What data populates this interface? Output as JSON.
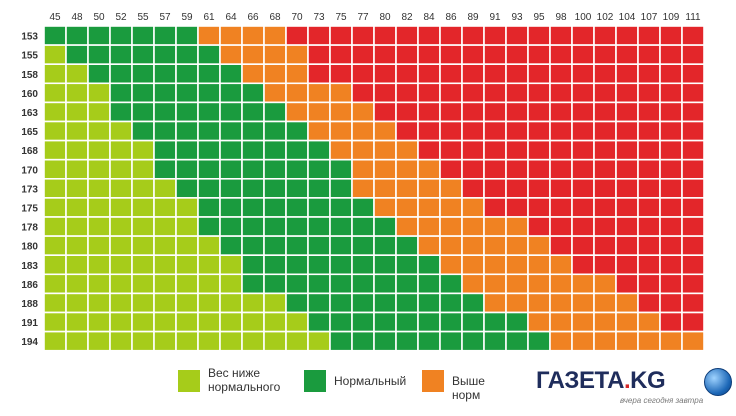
{
  "chart_data": {
    "type": "heatmap",
    "title": "",
    "xlabel": "",
    "ylabel": "",
    "x_categories": [
      "45",
      "48",
      "50",
      "52",
      "55",
      "57",
      "59",
      "61",
      "64",
      "66",
      "68",
      "70",
      "73",
      "75",
      "77",
      "80",
      "82",
      "84",
      "86",
      "89",
      "91",
      "93",
      "95",
      "98",
      "100",
      "102",
      "104",
      "107",
      "109",
      "111"
    ],
    "y_categories": [
      "153",
      "155",
      "158",
      "160",
      "163",
      "165",
      "168",
      "170",
      "173",
      "175",
      "178",
      "180",
      "183",
      "186",
      "188",
      "191",
      "194"
    ],
    "class_by_cell": [
      [
        1,
        1,
        1,
        1,
        1,
        1,
        1,
        2,
        2,
        2,
        2,
        3,
        3,
        3,
        3,
        3,
        3,
        3,
        3,
        3,
        3,
        3,
        3,
        3,
        3,
        3,
        3,
        3,
        3,
        3
      ],
      [
        0,
        1,
        1,
        1,
        1,
        1,
        1,
        1,
        2,
        2,
        2,
        2,
        3,
        3,
        3,
        3,
        3,
        3,
        3,
        3,
        3,
        3,
        3,
        3,
        3,
        3,
        3,
        3,
        3,
        3
      ],
      [
        0,
        0,
        1,
        1,
        1,
        1,
        1,
        1,
        1,
        2,
        2,
        2,
        3,
        3,
        3,
        3,
        3,
        3,
        3,
        3,
        3,
        3,
        3,
        3,
        3,
        3,
        3,
        3,
        3,
        3
      ],
      [
        0,
        0,
        0,
        1,
        1,
        1,
        1,
        1,
        1,
        1,
        2,
        2,
        2,
        2,
        3,
        3,
        3,
        3,
        3,
        3,
        3,
        3,
        3,
        3,
        3,
        3,
        3,
        3,
        3,
        3
      ],
      [
        0,
        0,
        0,
        1,
        1,
        1,
        1,
        1,
        1,
        1,
        1,
        2,
        2,
        2,
        2,
        3,
        3,
        3,
        3,
        3,
        3,
        3,
        3,
        3,
        3,
        3,
        3,
        3,
        3,
        3
      ],
      [
        0,
        0,
        0,
        0,
        1,
        1,
        1,
        1,
        1,
        1,
        1,
        1,
        2,
        2,
        2,
        2,
        3,
        3,
        3,
        3,
        3,
        3,
        3,
        3,
        3,
        3,
        3,
        3,
        3,
        3
      ],
      [
        0,
        0,
        0,
        0,
        0,
        1,
        1,
        1,
        1,
        1,
        1,
        1,
        1,
        2,
        2,
        2,
        2,
        3,
        3,
        3,
        3,
        3,
        3,
        3,
        3,
        3,
        3,
        3,
        3,
        3
      ],
      [
        0,
        0,
        0,
        0,
        0,
        1,
        1,
        1,
        1,
        1,
        1,
        1,
        1,
        1,
        2,
        2,
        2,
        2,
        3,
        3,
        3,
        3,
        3,
        3,
        3,
        3,
        3,
        3,
        3,
        3
      ],
      [
        0,
        0,
        0,
        0,
        0,
        0,
        1,
        1,
        1,
        1,
        1,
        1,
        1,
        1,
        2,
        2,
        2,
        2,
        2,
        3,
        3,
        3,
        3,
        3,
        3,
        3,
        3,
        3,
        3,
        3
      ],
      [
        0,
        0,
        0,
        0,
        0,
        0,
        0,
        1,
        1,
        1,
        1,
        1,
        1,
        1,
        1,
        2,
        2,
        2,
        2,
        2,
        3,
        3,
        3,
        3,
        3,
        3,
        3,
        3,
        3,
        3
      ],
      [
        0,
        0,
        0,
        0,
        0,
        0,
        0,
        1,
        1,
        1,
        1,
        1,
        1,
        1,
        1,
        1,
        2,
        2,
        2,
        2,
        2,
        2,
        3,
        3,
        3,
        3,
        3,
        3,
        3,
        3
      ],
      [
        0,
        0,
        0,
        0,
        0,
        0,
        0,
        0,
        1,
        1,
        1,
        1,
        1,
        1,
        1,
        1,
        1,
        2,
        2,
        2,
        2,
        2,
        2,
        3,
        3,
        3,
        3,
        3,
        3,
        3
      ],
      [
        0,
        0,
        0,
        0,
        0,
        0,
        0,
        0,
        0,
        1,
        1,
        1,
        1,
        1,
        1,
        1,
        1,
        1,
        2,
        2,
        2,
        2,
        2,
        2,
        3,
        3,
        3,
        3,
        3,
        3
      ],
      [
        0,
        0,
        0,
        0,
        0,
        0,
        0,
        0,
        0,
        1,
        1,
        1,
        1,
        1,
        1,
        1,
        1,
        1,
        1,
        2,
        2,
        2,
        2,
        2,
        2,
        2,
        3,
        3,
        3,
        3
      ],
      [
        0,
        0,
        0,
        0,
        0,
        0,
        0,
        0,
        0,
        0,
        0,
        1,
        1,
        1,
        1,
        1,
        1,
        1,
        1,
        1,
        2,
        2,
        2,
        2,
        2,
        2,
        2,
        3,
        3,
        3
      ],
      [
        0,
        0,
        0,
        0,
        0,
        0,
        0,
        0,
        0,
        0,
        0,
        0,
        1,
        1,
        1,
        1,
        1,
        1,
        1,
        1,
        1,
        1,
        2,
        2,
        2,
        2,
        2,
        2,
        3,
        3
      ],
      [
        0,
        0,
        0,
        0,
        0,
        0,
        0,
        0,
        0,
        0,
        0,
        0,
        0,
        1,
        1,
        1,
        1,
        1,
        1,
        1,
        1,
        1,
        1,
        2,
        2,
        2,
        2,
        2,
        2,
        2
      ]
    ],
    "classes": [
      {
        "label": "Вес ниже\nнормального",
        "color": "#a6cc1a"
      },
      {
        "label": "Нормальный",
        "color": "#1a9b3e"
      },
      {
        "label": "Выше норм",
        "color": "#f08222"
      },
      {
        "label": "",
        "color": "#e3262a"
      }
    ],
    "grid": true
  },
  "watermark": {
    "logo_main": "ГАЗЕТА",
    "logo_dot": ".",
    "logo_tld": "KG",
    "tagline": "вчера сегодня завтра"
  }
}
